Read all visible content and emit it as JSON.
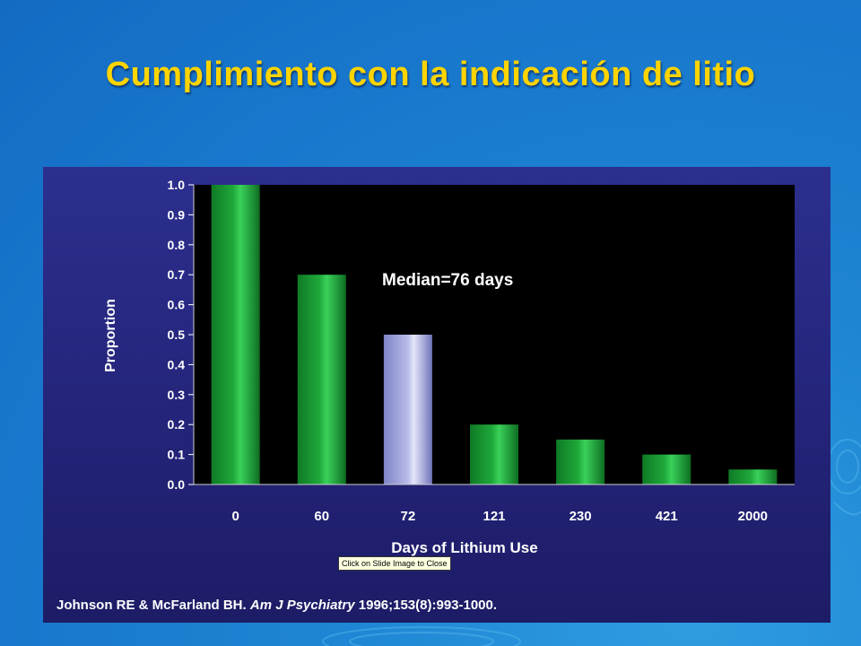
{
  "slide": {
    "title": "Cumplimiento  con  la indicación  de  litio",
    "tooltip": "Click on Slide Image to Close",
    "citation": {
      "authors": "Johnson RE & McFarland BH. ",
      "journal": "Am J Psychiatry",
      "details": " 1996;153(8):993-1000."
    },
    "colors": {
      "title": "#ffd400",
      "bar": "#1fa83a",
      "highlight_bar": "#b8bce8",
      "plot_background": "#000000",
      "frame_background": "#26267c"
    }
  },
  "chart_data": {
    "type": "bar",
    "categories": [
      "0",
      "60",
      "72",
      "121",
      "230",
      "421",
      "2000"
    ],
    "values": [
      1.0,
      0.7,
      0.5,
      0.2,
      0.15,
      0.1,
      0.05
    ],
    "highlight_index": 2,
    "xlabel": "Days of Lithium Use",
    "ylabel": "Proportion",
    "ylim": [
      0,
      1.0
    ],
    "yticks": [
      "0.0",
      "0.1",
      "0.2",
      "0.3",
      "0.4",
      "0.5",
      "0.6",
      "0.7",
      "0.8",
      "0.9",
      "1.0"
    ],
    "annotation": "Median=76 days",
    "grid": false,
    "legend": "none"
  }
}
